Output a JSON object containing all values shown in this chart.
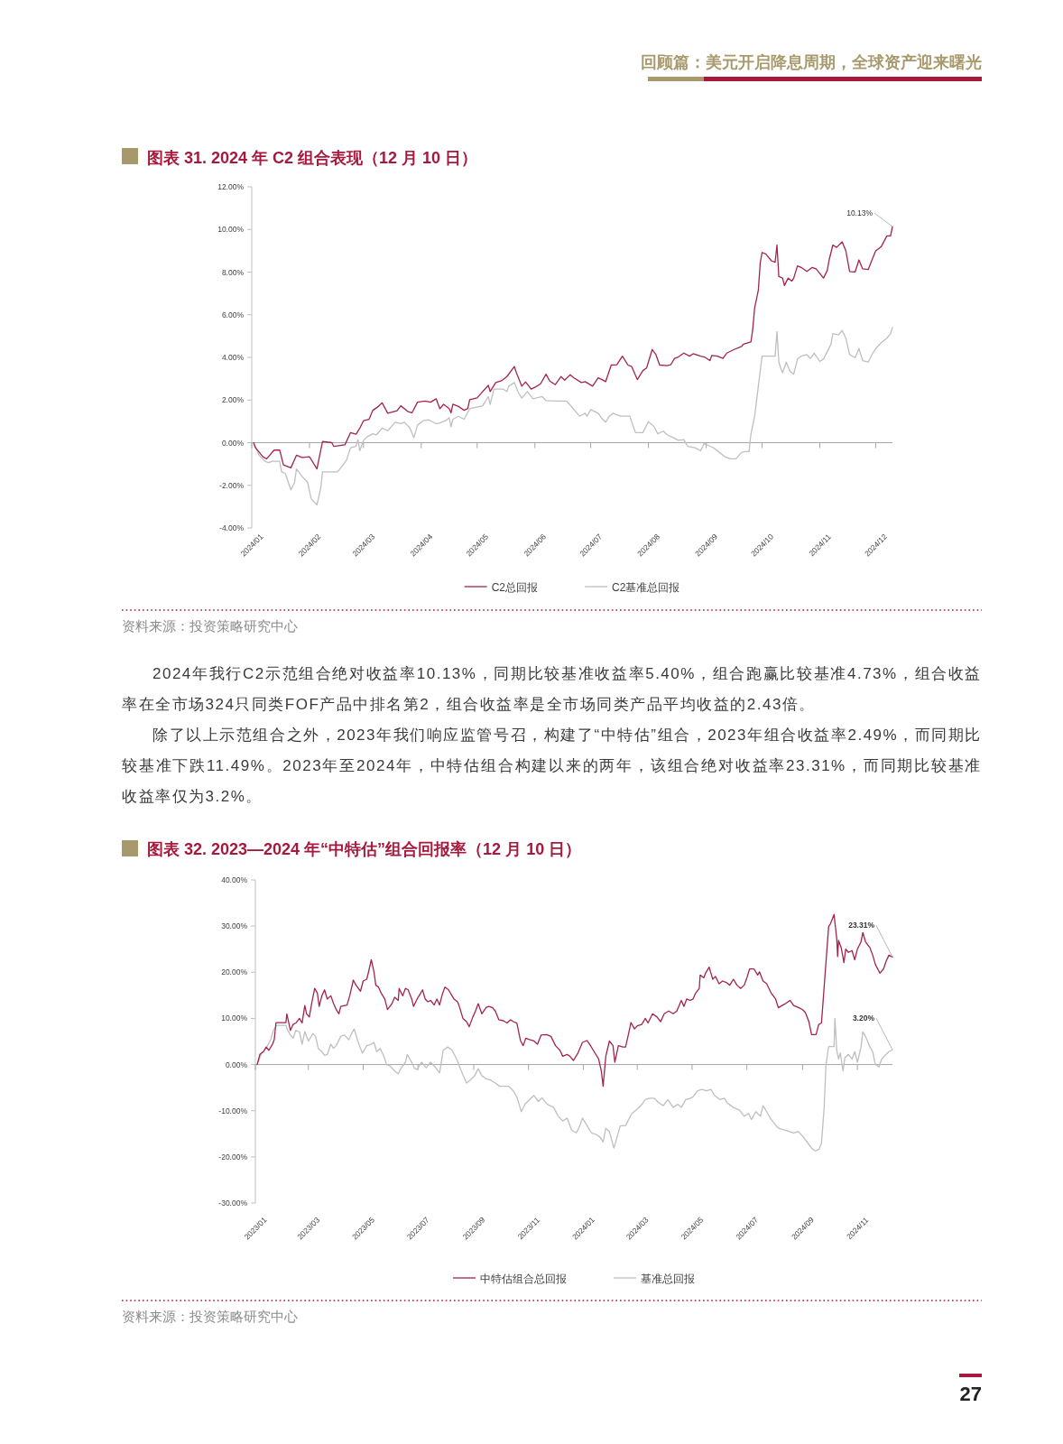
{
  "chart_data": [
    {
      "type": "other",
      "annotations": [
        "回顾篇：美元开启降息周期，全球资产迎来曙光"
      ]
    },
    {
      "type": "line",
      "title": "图表 31. 2024 年 C2 组合表现（12 月 10 日）",
      "xlim": [
        "2024-01-01",
        "2024-12-10"
      ],
      "xticks": [
        {
          "value": "2024-01",
          "label": "2024/01"
        },
        {
          "value": "2024-02",
          "label": "2024/02"
        },
        {
          "value": "2024-03",
          "label": "2024/03"
        },
        {
          "value": "2024-04",
          "label": "2024/04"
        },
        {
          "value": "2024-05",
          "label": "2024/05"
        },
        {
          "value": "2024-06",
          "label": "2024/06"
        },
        {
          "value": "2024-07",
          "label": "2024/07"
        },
        {
          "value": "2024-08",
          "label": "2024/08"
        },
        {
          "value": "2024-09",
          "label": "2024/09"
        },
        {
          "value": "2024-10",
          "label": "2024/10"
        },
        {
          "value": "2024-11",
          "label": "2024/11"
        },
        {
          "value": "2024-12",
          "label": "2024/12"
        }
      ],
      "ylim": [
        -4,
        12
      ],
      "yticks": [
        {
          "value": -4,
          "label": "-4.00%"
        },
        {
          "value": -2,
          "label": "-2.00%"
        },
        {
          "value": 0,
          "label": "0.00%"
        },
        {
          "value": 2,
          "label": "2.00%"
        },
        {
          "value": 4,
          "label": "4.00%"
        },
        {
          "value": 6,
          "label": "6.00%"
        },
        {
          "value": 8,
          "label": "8.00%"
        },
        {
          "value": 10,
          "label": "10.00%"
        },
        {
          "value": 12,
          "label": "12.00%"
        }
      ],
      "legend": "bottom",
      "series": [
        {
          "name": "C2总回报",
          "color": "#a3244d",
          "x": [
            "2024-01-02",
            "2024-01-03",
            "2024-01-07",
            "2024-01-09",
            "2024-01-13",
            "2024-01-16",
            "2024-01-18",
            "2024-01-22",
            "2024-01-25",
            "2024-01-28",
            "2024-02-01",
            "2024-02-05",
            "2024-02-08",
            "2024-02-13",
            "2024-02-14",
            "2024-02-20",
            "2024-02-23",
            "2024-02-26",
            "2024-02-28",
            "2024-03-01",
            "2024-03-04",
            "2024-03-06",
            "2024-03-09",
            "2024-03-11",
            "2024-03-14",
            "2024-03-19",
            "2024-03-21",
            "2024-03-25",
            "2024-03-27",
            "2024-03-30",
            "2024-04-03",
            "2024-04-06",
            "2024-04-09",
            "2024-04-11",
            "2024-04-13",
            "2024-04-16",
            "2024-04-17",
            "2024-04-18",
            "2024-04-21",
            "2024-04-24",
            "2024-04-26",
            "2024-04-27",
            "2024-05-01",
            "2024-05-03",
            "2024-05-07",
            "2024-05-08",
            "2024-05-11",
            "2024-05-14",
            "2024-05-17",
            "2024-05-21",
            "2024-05-22",
            "2024-05-25",
            "2024-05-27",
            "2024-05-30",
            "2024-06-01",
            "2024-06-04",
            "2024-06-07",
            "2024-06-09",
            "2024-06-12",
            "2024-06-15",
            "2024-06-17",
            "2024-06-20",
            "2024-06-22",
            "2024-06-26",
            "2024-06-28",
            "2024-07-02",
            "2024-07-05",
            "2024-07-07",
            "2024-07-09",
            "2024-07-12",
            "2024-07-15",
            "2024-07-18",
            "2024-07-21",
            "2024-07-23",
            "2024-07-26",
            "2024-07-29",
            "2024-07-31",
            "2024-08-03",
            "2024-08-05",
            "2024-08-07",
            "2024-08-11",
            "2024-08-13",
            "2024-08-15",
            "2024-08-17",
            "2024-08-20",
            "2024-08-23",
            "2024-08-25",
            "2024-08-29",
            "2024-08-31",
            "2024-09-03",
            "2024-09-04",
            "2024-09-07",
            "2024-09-10",
            "2024-09-12",
            "2024-09-16",
            "2024-09-20",
            "2024-09-21",
            "2024-09-25",
            "2024-09-26",
            "2024-09-27",
            "2024-09-29",
            "2024-09-30",
            "2024-10-01",
            "2024-10-03",
            "2024-10-06",
            "2024-10-08",
            "2024-10-09",
            "2024-10-10",
            "2024-10-12",
            "2024-10-13",
            "2024-10-15",
            "2024-10-17",
            "2024-10-18",
            "2024-10-20",
            "2024-10-22",
            "2024-10-25",
            "2024-10-28",
            "2024-10-30",
            "2024-11-03",
            "2024-11-05",
            "2024-11-06",
            "2024-11-08",
            "2024-11-10",
            "2024-11-13",
            "2024-11-15",
            "2024-11-17",
            "2024-11-20",
            "2024-11-22",
            "2024-11-24",
            "2024-11-27",
            "2024-11-29",
            "2024-12-01",
            "2024-12-04",
            "2024-12-07",
            "2024-12-09",
            "2024-12-10"
          ],
          "values": [
            0.0,
            -0.24,
            -0.66,
            -0.76,
            -0.35,
            -0.35,
            -1.04,
            -1.18,
            -0.59,
            -0.69,
            -0.66,
            -1.23,
            0.06,
            0.0,
            -0.17,
            -0.1,
            0.47,
            0.4,
            0.68,
            1.03,
            1.1,
            1.52,
            1.7,
            1.87,
            1.38,
            1.5,
            1.73,
            1.45,
            1.4,
            1.9,
            1.95,
            1.9,
            2.06,
            1.59,
            1.8,
            1.6,
            1.4,
            1.8,
            1.7,
            1.52,
            1.6,
            2.02,
            2.1,
            2.3,
            2.69,
            2.4,
            2.82,
            2.9,
            3.1,
            3.57,
            3.3,
            2.65,
            2.85,
            2.51,
            2.6,
            2.75,
            3.21,
            2.89,
            2.72,
            3.1,
            2.93,
            3.19,
            3.04,
            2.82,
            2.86,
            2.65,
            3.04,
            2.96,
            2.86,
            3.64,
            3.66,
            4.06,
            3.64,
            3.57,
            2.96,
            3.38,
            3.5,
            4.37,
            4.13,
            3.64,
            3.61,
            3.66,
            3.95,
            4.02,
            4.2,
            4.06,
            4.17,
            4.06,
            4.02,
            3.85,
            4.09,
            4.06,
            3.95,
            4.2,
            4.37,
            4.51,
            4.62,
            4.72,
            5.33,
            6.31,
            7.16,
            8.43,
            8.92,
            8.85,
            8.53,
            8.46,
            9.27,
            7.79,
            7.72,
            7.37,
            7.72,
            7.58,
            7.72,
            8.29,
            8.22,
            8.03,
            8.22,
            8.15,
            7.72,
            8.08,
            8.57,
            9.27,
            9.16,
            9.42,
            8.99,
            8.03,
            8.01,
            8.57,
            8.15,
            8.12,
            8.57,
            8.99,
            9.2,
            9.7,
            9.7,
            10.13
          ]
        },
        {
          "name": "C2基准总回报",
          "color": "#bfbfbf",
          "x": [
            "2024-01-02",
            "2024-01-05",
            "2024-01-08",
            "2024-01-10",
            "2024-01-12",
            "2024-01-16",
            "2024-01-17",
            "2024-01-19",
            "2024-01-22",
            "2024-01-24",
            "2024-01-25",
            "2024-01-28",
            "2024-01-31",
            "2024-02-01",
            "2024-02-02",
            "2024-02-05",
            "2024-02-07",
            "2024-02-08",
            "2024-02-16",
            "2024-02-18",
            "2024-02-21",
            "2024-02-23",
            "2024-02-26",
            "2024-02-27",
            "2024-02-28",
            "2024-03-01",
            "2024-03-03",
            "2024-03-06",
            "2024-03-08",
            "2024-03-11",
            "2024-03-14",
            "2024-03-18",
            "2024-03-21",
            "2024-03-23",
            "2024-03-26",
            "2024-03-28",
            "2024-03-30",
            "2024-04-02",
            "2024-04-05",
            "2024-04-09",
            "2024-04-11",
            "2024-04-14",
            "2024-04-16",
            "2024-04-17",
            "2024-04-18",
            "2024-04-21",
            "2024-04-24",
            "2024-04-27",
            "2024-05-04",
            "2024-05-06",
            "2024-05-07",
            "2024-05-08",
            "2024-05-10",
            "2024-05-15",
            "2024-05-17",
            "2024-05-18",
            "2024-05-21",
            "2024-05-23",
            "2024-05-25",
            "2024-05-28",
            "2024-05-31",
            "2024-06-05",
            "2024-06-07",
            "2024-06-12",
            "2024-06-18",
            "2024-06-21",
            "2024-06-25",
            "2024-06-28",
            "2024-06-29",
            "2024-07-01",
            "2024-07-05",
            "2024-07-07",
            "2024-07-09",
            "2024-07-11",
            "2024-07-13",
            "2024-07-17",
            "2024-07-22",
            "2024-07-25",
            "2024-07-29",
            "2024-08-01",
            "2024-08-04",
            "2024-08-06",
            "2024-08-09",
            "2024-08-11",
            "2024-08-14",
            "2024-08-17",
            "2024-08-20",
            "2024-08-22",
            "2024-08-26",
            "2024-08-29",
            "2024-08-31",
            "2024-09-03",
            "2024-09-05",
            "2024-09-08",
            "2024-09-11",
            "2024-09-14",
            "2024-09-17",
            "2024-09-20",
            "2024-09-22",
            "2024-09-24",
            "2024-09-25",
            "2024-09-27",
            "2024-09-29",
            "2024-10-01",
            "2024-10-08",
            "2024-10-09",
            "2024-10-10",
            "2024-10-11",
            "2024-10-12",
            "2024-10-14",
            "2024-10-16",
            "2024-10-18",
            "2024-10-20",
            "2024-10-22",
            "2024-10-25",
            "2024-10-27",
            "2024-10-29",
            "2024-11-01",
            "2024-11-03",
            "2024-11-07",
            "2024-11-08",
            "2024-11-11",
            "2024-11-13",
            "2024-11-15",
            "2024-11-17",
            "2024-11-20",
            "2024-11-22",
            "2024-11-24",
            "2024-11-27",
            "2024-11-29",
            "2024-12-01",
            "2024-12-04",
            "2024-12-07",
            "2024-12-09",
            "2024-12-10"
          ],
          "values": [
            0.0,
            -0.59,
            -0.87,
            -0.94,
            -0.87,
            -0.87,
            -1.37,
            -1.44,
            -2.21,
            -1.86,
            -1.23,
            -1.58,
            -1.86,
            -2.28,
            -2.64,
            -2.92,
            -2.14,
            -1.37,
            -1.37,
            -1.16,
            -0.8,
            -0.24,
            -0.17,
            0.14,
            -0.38,
            0.11,
            0.28,
            0.42,
            0.37,
            0.68,
            0.56,
            0.96,
            0.89,
            0.96,
            0.68,
            0.23,
            0.82,
            1.03,
            1.07,
            0.89,
            0.93,
            1.03,
            1.17,
            0.75,
            1.1,
            1.24,
            1.1,
            1.59,
            1.73,
            2.02,
            2.16,
            1.8,
            2.51,
            2.51,
            2.4,
            2.65,
            2.82,
            2.37,
            2.09,
            2.4,
            2.06,
            2.16,
            1.97,
            1.95,
            1.95,
            1.66,
            1.24,
            1.38,
            1.24,
            1.55,
            1.38,
            1.13,
            0.96,
            1.24,
            1.38,
            1.24,
            1.24,
            0.47,
            0.47,
            0.99,
            0.75,
            0.42,
            0.54,
            0.37,
            0.25,
            0.11,
            0.14,
            -0.17,
            -0.24,
            -0.38,
            -0.03,
            -0.17,
            -0.24,
            -0.45,
            -0.66,
            -0.76,
            -0.76,
            -0.45,
            -0.42,
            -0.42,
            0.39,
            1.24,
            2.65,
            4.06,
            4.06,
            5.21,
            3.78,
            3.5,
            3.28,
            3.78,
            3.35,
            3.21,
            3.92,
            4.06,
            4.13,
            3.95,
            4.2,
            3.81,
            3.92,
            4.62,
            5.12,
            5.05,
            5.26,
            4.9,
            4.13,
            3.99,
            4.41,
            3.85,
            3.78,
            4.13,
            4.41,
            4.69,
            4.9,
            5.12,
            5.4
          ]
        }
      ],
      "annotations": [
        {
          "text": "10.13%",
          "x": "2024-12-10",
          "y": 10.13
        },
        "资料来源：投资策略研究中心"
      ]
    },
    {
      "type": "other",
      "annotations": [
        "2024年我行C2示范组合绝对收益率10.13%，同期比较基准收益率5.40%，组合跑赢比较基准4.73%，组合收益率在全市场324只同类FOF产品中排名第2，组合收益率是全市场同类产品平均收益的2.43倍。",
        "除了以上示范组合之外，2023年我们响应监管号召，构建了“中特估”组合，2023年组合收益率2.49%，而同期比较基准下跌11.49%。2023年至2024年，中特估组合构建以来的两年，该组合绝对收益率23.31%，而同期比较基准收益率仅为3.2%。"
      ]
    },
    {
      "type": "line",
      "title": "图表 32. 2023—2024 年“中特估”组合回报率（12 月 10 日）",
      "xlim": [
        "2023-01-01",
        "2024-12-10"
      ],
      "xticks": [
        {
          "value": "2023-01",
          "label": "2023/01"
        },
        {
          "value": "2023-03",
          "label": "2023/03"
        },
        {
          "value": "2023-05",
          "label": "2023/05"
        },
        {
          "value": "2023-07",
          "label": "2023/07"
        },
        {
          "value": "2023-09",
          "label": "2023/09"
        },
        {
          "value": "2023-11",
          "label": "2023/11"
        },
        {
          "value": "2024-01",
          "label": "2024/01"
        },
        {
          "value": "2024-03",
          "label": "2024/03"
        },
        {
          "value": "2024-05",
          "label": "2024/05"
        },
        {
          "value": "2024-07",
          "label": "2024/07"
        },
        {
          "value": "2024-09",
          "label": "2024/09"
        },
        {
          "value": "2024-11",
          "label": "2024/11"
        }
      ],
      "ylim": [
        -30,
        40
      ],
      "yticks": [
        {
          "value": -30,
          "label": "-30.00%"
        },
        {
          "value": -20,
          "label": "-20.00%"
        },
        {
          "value": -10,
          "label": "-10.00%"
        },
        {
          "value": 0,
          "label": "0.00%"
        },
        {
          "value": 10,
          "label": "10.00%"
        },
        {
          "value": 20,
          "label": "20.00%"
        },
        {
          "value": 30,
          "label": "30.00%"
        },
        {
          "value": 40,
          "label": "40.00%"
        }
      ],
      "legend": "bottom",
      "series": [
        {
          "name": "中特估组合总回报",
          "color": "#a3244d",
          "x": [
            "2023-01-03",
            "2023-01-06",
            "2023-01-10",
            "2023-01-13",
            "2023-01-16",
            "2023-01-20",
            "2023-01-22",
            "2023-01-24",
            "2023-02-04",
            "2023-02-05",
            "2023-02-09",
            "2023-02-12",
            "2023-02-15",
            "2023-02-19",
            "2023-02-22",
            "2023-02-25",
            "2023-02-27",
            "2023-03-02",
            "2023-03-05",
            "2023-03-08",
            "2023-03-11",
            "2023-03-13",
            "2023-03-16",
            "2023-03-19",
            "2023-03-22",
            "2023-03-26",
            "2023-03-29",
            "2023-04-01",
            "2023-04-04",
            "2023-04-06",
            "2023-04-13",
            "2023-04-16",
            "2023-04-20",
            "2023-04-23",
            "2023-04-28",
            "2023-05-01",
            "2023-05-05",
            "2023-05-07",
            "2023-05-10",
            "2023-05-13",
            "2023-05-15",
            "2023-05-18",
            "2023-05-21",
            "2023-05-25",
            "2023-05-28",
            "2023-06-02",
            "2023-06-05",
            "2023-06-09",
            "2023-06-10",
            "2023-06-14",
            "2023-06-17",
            "2023-06-20",
            "2023-06-24",
            "2023-06-26",
            "2023-06-30",
            "2023-07-04",
            "2023-07-06",
            "2023-07-09",
            "2023-07-12",
            "2023-07-15",
            "2023-07-19",
            "2023-07-22",
            "2023-07-25",
            "2023-07-28",
            "2023-07-31",
            "2023-08-04",
            "2023-08-07",
            "2023-08-10",
            "2023-08-14",
            "2023-08-16",
            "2023-08-20",
            "2023-08-24",
            "2023-08-27",
            "2023-08-31",
            "2023-09-03",
            "2023-09-06",
            "2023-09-10",
            "2023-09-15",
            "2023-09-18",
            "2023-09-22",
            "2023-09-25",
            "2023-09-29",
            "2023-10-04",
            "2023-10-08",
            "2023-10-12",
            "2023-10-15",
            "2023-10-19",
            "2023-10-23",
            "2023-10-26",
            "2023-10-29",
            "2023-11-02",
            "2023-11-07",
            "2023-11-11",
            "2023-11-15",
            "2023-11-21",
            "2023-11-26",
            "2023-12-01",
            "2023-12-06",
            "2023-12-09",
            "2023-12-14",
            "2023-12-17",
            "2023-12-21",
            "2023-12-26",
            "2023-12-31",
            "2024-01-05",
            "2024-01-08",
            "2024-01-13",
            "2024-01-18",
            "2024-01-21",
            "2024-01-23",
            "2024-01-26",
            "2024-01-30",
            "2024-02-03",
            "2024-02-05",
            "2024-02-09",
            "2024-02-14",
            "2024-02-17",
            "2024-02-20",
            "2024-02-23",
            "2024-02-27",
            "2024-03-01",
            "2024-03-06",
            "2024-03-10",
            "2024-03-13",
            "2024-03-18",
            "2024-03-23",
            "2024-03-27",
            "2024-03-31",
            "2024-04-05",
            "2024-04-10",
            "2024-04-14",
            "2024-04-19",
            "2024-04-22",
            "2024-04-25",
            "2024-04-29",
            "2024-05-02",
            "2024-05-05",
            "2024-05-09",
            "2024-05-10",
            "2024-05-14",
            "2024-05-16",
            "2024-05-20",
            "2024-05-24",
            "2024-05-27",
            "2024-05-31",
            "2024-06-04",
            "2024-06-08",
            "2024-06-12",
            "2024-06-16",
            "2024-06-20",
            "2024-06-24",
            "2024-06-28",
            "2024-07-01",
            "2024-07-04",
            "2024-07-09",
            "2024-07-13",
            "2024-07-15",
            "2024-07-19",
            "2024-07-23",
            "2024-07-28",
            "2024-08-02",
            "2024-08-05",
            "2024-08-10",
            "2024-08-13",
            "2024-08-18",
            "2024-08-22",
            "2024-08-28",
            "2024-09-01",
            "2024-09-04",
            "2024-09-08",
            "2024-09-11",
            "2024-09-16",
            "2024-09-19",
            "2024-09-22",
            "2024-09-24",
            "2024-09-27",
            "2024-09-30",
            "2024-10-02",
            "2024-10-06",
            "2024-10-09",
            "2024-10-10",
            "2024-10-11",
            "2024-10-14",
            "2024-10-17",
            "2024-10-19",
            "2024-10-22",
            "2024-10-26",
            "2024-10-29",
            "2024-11-01",
            "2024-11-05",
            "2024-11-07",
            "2024-11-10",
            "2024-11-15",
            "2024-11-18",
            "2024-11-21",
            "2024-11-26",
            "2024-11-30",
            "2024-12-03",
            "2024-12-06",
            "2024-12-10"
          ],
          "values": [
            0.0,
            2.2,
            2.8,
            3.8,
            3.1,
            4.4,
            5.4,
            9.1,
            9.1,
            11.0,
            7.4,
            8.7,
            9.0,
            10.0,
            9.0,
            12.8,
            11.0,
            10.3,
            13.6,
            16.5,
            15.5,
            12.6,
            14.9,
            16.2,
            14.2,
            14.9,
            13.2,
            11.9,
            11.0,
            12.6,
            12.9,
            14.9,
            18.3,
            17.2,
            15.9,
            18.1,
            18.5,
            20.1,
            22.7,
            20.1,
            17.2,
            16.8,
            15.5,
            14.2,
            11.9,
            13.2,
            14.6,
            13.9,
            16.5,
            14.9,
            16.5,
            16.2,
            14.2,
            12.6,
            14.2,
            15.5,
            16.2,
            14.2,
            13.6,
            13.9,
            12.9,
            14.2,
            12.9,
            15.2,
            16.8,
            16.2,
            15.2,
            14.2,
            13.6,
            12.6,
            10.0,
            9.3,
            8.2,
            10.3,
            11.6,
            13.2,
            11.0,
            12.4,
            12.6,
            12.3,
            11.6,
            9.7,
            9.5,
            9.0,
            9.7,
            9.3,
            9.0,
            5.2,
            4.1,
            5.7,
            5.4,
            5.1,
            4.4,
            6.4,
            6.5,
            6.1,
            4.1,
            3.1,
            1.8,
            2.2,
            1.8,
            0.9,
            2.5,
            4.8,
            5.2,
            4.4,
            2.8,
            1.2,
            -1.4,
            -4.7,
            1.8,
            5.1,
            4.1,
            0.5,
            4.1,
            3.8,
            3.8,
            6.4,
            9.1,
            7.7,
            8.4,
            8.7,
            10.0,
            9.0,
            11.0,
            10.3,
            9.3,
            11.0,
            11.6,
            11.0,
            11.6,
            13.9,
            12.6,
            14.2,
            13.9,
            14.2,
            15.5,
            16.5,
            19.4,
            18.8,
            19.8,
            21.1,
            18.5,
            19.1,
            17.5,
            18.1,
            17.8,
            17.2,
            18.5,
            17.2,
            16.5,
            17.2,
            18.8,
            20.7,
            20.7,
            19.4,
            20.1,
            18.1,
            17.5,
            15.5,
            14.2,
            12.3,
            12.9,
            13.2,
            13.9,
            12.8,
            12.3,
            11.9,
            11.3,
            9.3,
            6.5,
            6.5,
            8.7,
            9.0,
            14.2,
            22.1,
            29.9,
            30.5,
            32.5,
            27.3,
            23.4,
            26.9,
            25.3,
            22.1,
            25.0,
            24.3,
            24.7,
            22.7,
            25.0,
            26.6,
            28.6,
            26.6,
            25.3,
            23.7,
            21.7,
            19.8,
            20.7,
            22.4,
            23.7,
            23.31
          ]
        },
        {
          "name": "基准总回报",
          "color": "#bfbfbf",
          "x": [
            "2023-01-03",
            "2023-01-08",
            "2023-01-13",
            "2023-01-18",
            "2023-01-21",
            "2023-01-25",
            "2023-02-04",
            "2023-02-05",
            "2023-02-09",
            "2023-02-12",
            "2023-02-15",
            "2023-02-19",
            "2023-02-22",
            "2023-02-25",
            "2023-03-01",
            "2023-03-06",
            "2023-03-09",
            "2023-03-12",
            "2023-03-16",
            "2023-03-19",
            "2023-03-22",
            "2023-03-26",
            "2023-03-29",
            "2023-04-01",
            "2023-04-06",
            "2023-04-10",
            "2023-04-15",
            "2023-04-18",
            "2023-04-21",
            "2023-04-25",
            "2023-04-30",
            "2023-05-05",
            "2023-05-10",
            "2023-05-13",
            "2023-05-16",
            "2023-05-20",
            "2023-05-24",
            "2023-05-27",
            "2023-05-31",
            "2023-06-05",
            "2023-06-09",
            "2023-06-12",
            "2023-06-17",
            "2023-06-19",
            "2023-06-24",
            "2023-06-27",
            "2023-06-30",
            "2023-07-05",
            "2023-07-10",
            "2023-07-15",
            "2023-07-20",
            "2023-07-25",
            "2023-07-29",
            "2023-08-03",
            "2023-08-08",
            "2023-08-13",
            "2023-08-17",
            "2023-08-21",
            "2023-08-24",
            "2023-08-28",
            "2023-09-02",
            "2023-09-06",
            "2023-09-10",
            "2023-09-15",
            "2023-09-20",
            "2023-09-25",
            "2023-09-30",
            "2023-10-10",
            "2023-10-15",
            "2023-10-19",
            "2023-10-24",
            "2023-10-28",
            "2023-11-02",
            "2023-11-07",
            "2023-11-12",
            "2023-11-16",
            "2023-11-22",
            "2023-11-29",
            "2023-12-04",
            "2023-12-09",
            "2023-12-14",
            "2023-12-19",
            "2023-12-24",
            "2023-12-27",
            "2023-12-31",
            "2024-01-05",
            "2024-01-10",
            "2024-01-15",
            "2024-01-20",
            "2024-01-23",
            "2024-01-26",
            "2024-01-30",
            "2024-02-04",
            "2024-02-07",
            "2024-02-11",
            "2024-02-17",
            "2024-02-24",
            "2024-02-29",
            "2024-03-05",
            "2024-03-10",
            "2024-03-15",
            "2024-03-20",
            "2024-03-25",
            "2024-03-30",
            "2024-04-04",
            "2024-04-10",
            "2024-04-15",
            "2024-04-19",
            "2024-04-24",
            "2024-04-29",
            "2024-05-02",
            "2024-05-07",
            "2024-05-12",
            "2024-05-17",
            "2024-05-22",
            "2024-05-26",
            "2024-06-01",
            "2024-06-06",
            "2024-06-09",
            "2024-06-16",
            "2024-06-23",
            "2024-06-28",
            "2024-07-03",
            "2024-07-06",
            "2024-07-11",
            "2024-07-16",
            "2024-07-19",
            "2024-07-23",
            "2024-07-28",
            "2024-08-02",
            "2024-08-05",
            "2024-08-12",
            "2024-08-17",
            "2024-08-22",
            "2024-08-27",
            "2024-09-01",
            "2024-09-06",
            "2024-09-11",
            "2024-09-15",
            "2024-09-19",
            "2024-09-22",
            "2024-09-25",
            "2024-09-27",
            "2024-09-30",
            "2024-10-06",
            "2024-10-07",
            "2024-10-09",
            "2024-10-11",
            "2024-10-13",
            "2024-10-16",
            "2024-10-18",
            "2024-10-22",
            "2024-10-26",
            "2024-10-29",
            "2024-11-01",
            "2024-11-05",
            "2024-11-07",
            "2024-11-10",
            "2024-11-15",
            "2024-11-18",
            "2024-11-21",
            "2024-11-25",
            "2024-11-28",
            "2024-12-03",
            "2024-12-06",
            "2024-12-10"
          ],
          "values": [
            0.0,
            2.5,
            3.5,
            5.4,
            7.4,
            8.5,
            8.5,
            7.8,
            6.4,
            5.7,
            7.4,
            7.1,
            4.4,
            7.1,
            5.1,
            6.7,
            6.1,
            3.5,
            2.8,
            2.0,
            2.2,
            4.4,
            3.5,
            4.1,
            6.1,
            6.4,
            5.4,
            6.7,
            7.7,
            5.1,
            2.5,
            4.1,
            4.4,
            4.8,
            2.8,
            3.5,
            1.8,
            0.0,
            -0.3,
            -1.4,
            -2.0,
            -0.8,
            0.5,
            2.2,
            0.5,
            -0.8,
            -1.1,
            0.5,
            -0.7,
            0.5,
            -0.5,
            -1.8,
            3.1,
            3.8,
            3.1,
            1.2,
            -0.8,
            -2.7,
            -4.0,
            -3.4,
            -2.4,
            -0.9,
            -2.4,
            -3.1,
            -3.4,
            -4.0,
            -4.7,
            -4.7,
            -5.7,
            -7.0,
            -10.2,
            -8.6,
            -7.6,
            -6.7,
            -8.0,
            -7.2,
            -8.6,
            -9.3,
            -11.2,
            -12.2,
            -11.6,
            -14.2,
            -14.8,
            -13.8,
            -11.6,
            -13.2,
            -14.8,
            -15.1,
            -15.8,
            -16.8,
            -13.8,
            -14.5,
            -18.1,
            -16.1,
            -13.3,
            -13.2,
            -10.6,
            -9.8,
            -8.9,
            -7.6,
            -7.3,
            -7.3,
            -8.3,
            -8.9,
            -7.6,
            -9.3,
            -8.6,
            -9.3,
            -7.6,
            -7.3,
            -7.0,
            -5.7,
            -5.4,
            -5.7,
            -5.4,
            -6.7,
            -7.6,
            -7.3,
            -8.3,
            -9.3,
            -9.9,
            -11.2,
            -10.6,
            -11.9,
            -10.2,
            -11.2,
            -8.9,
            -10.2,
            -11.9,
            -13.1,
            -13.8,
            -14.2,
            -14.5,
            -14.8,
            -14.5,
            -15.5,
            -16.8,
            -18.1,
            -18.7,
            -18.4,
            -17.1,
            -9.3,
            -0.1,
            3.9,
            3.9,
            10.0,
            3.1,
            1.2,
            2.5,
            -1.4,
            1.5,
            2.2,
            1.2,
            2.8,
            0.5,
            3.8,
            7.1,
            6.1,
            3.8,
            2.8,
            0.0,
            -0.5,
            1.2,
            2.2,
            2.8,
            3.2
          ]
        }
      ],
      "annotations": [
        {
          "text": "23.31%",
          "x": "2024-12-10",
          "y": 23.31
        },
        {
          "text": "3.20%",
          "x": "2024-12-10",
          "y": 3.2
        },
        "资料来源：投资策略研究中心"
      ]
    },
    {
      "type": "other",
      "annotations": [
        "27"
      ]
    }
  ]
}
